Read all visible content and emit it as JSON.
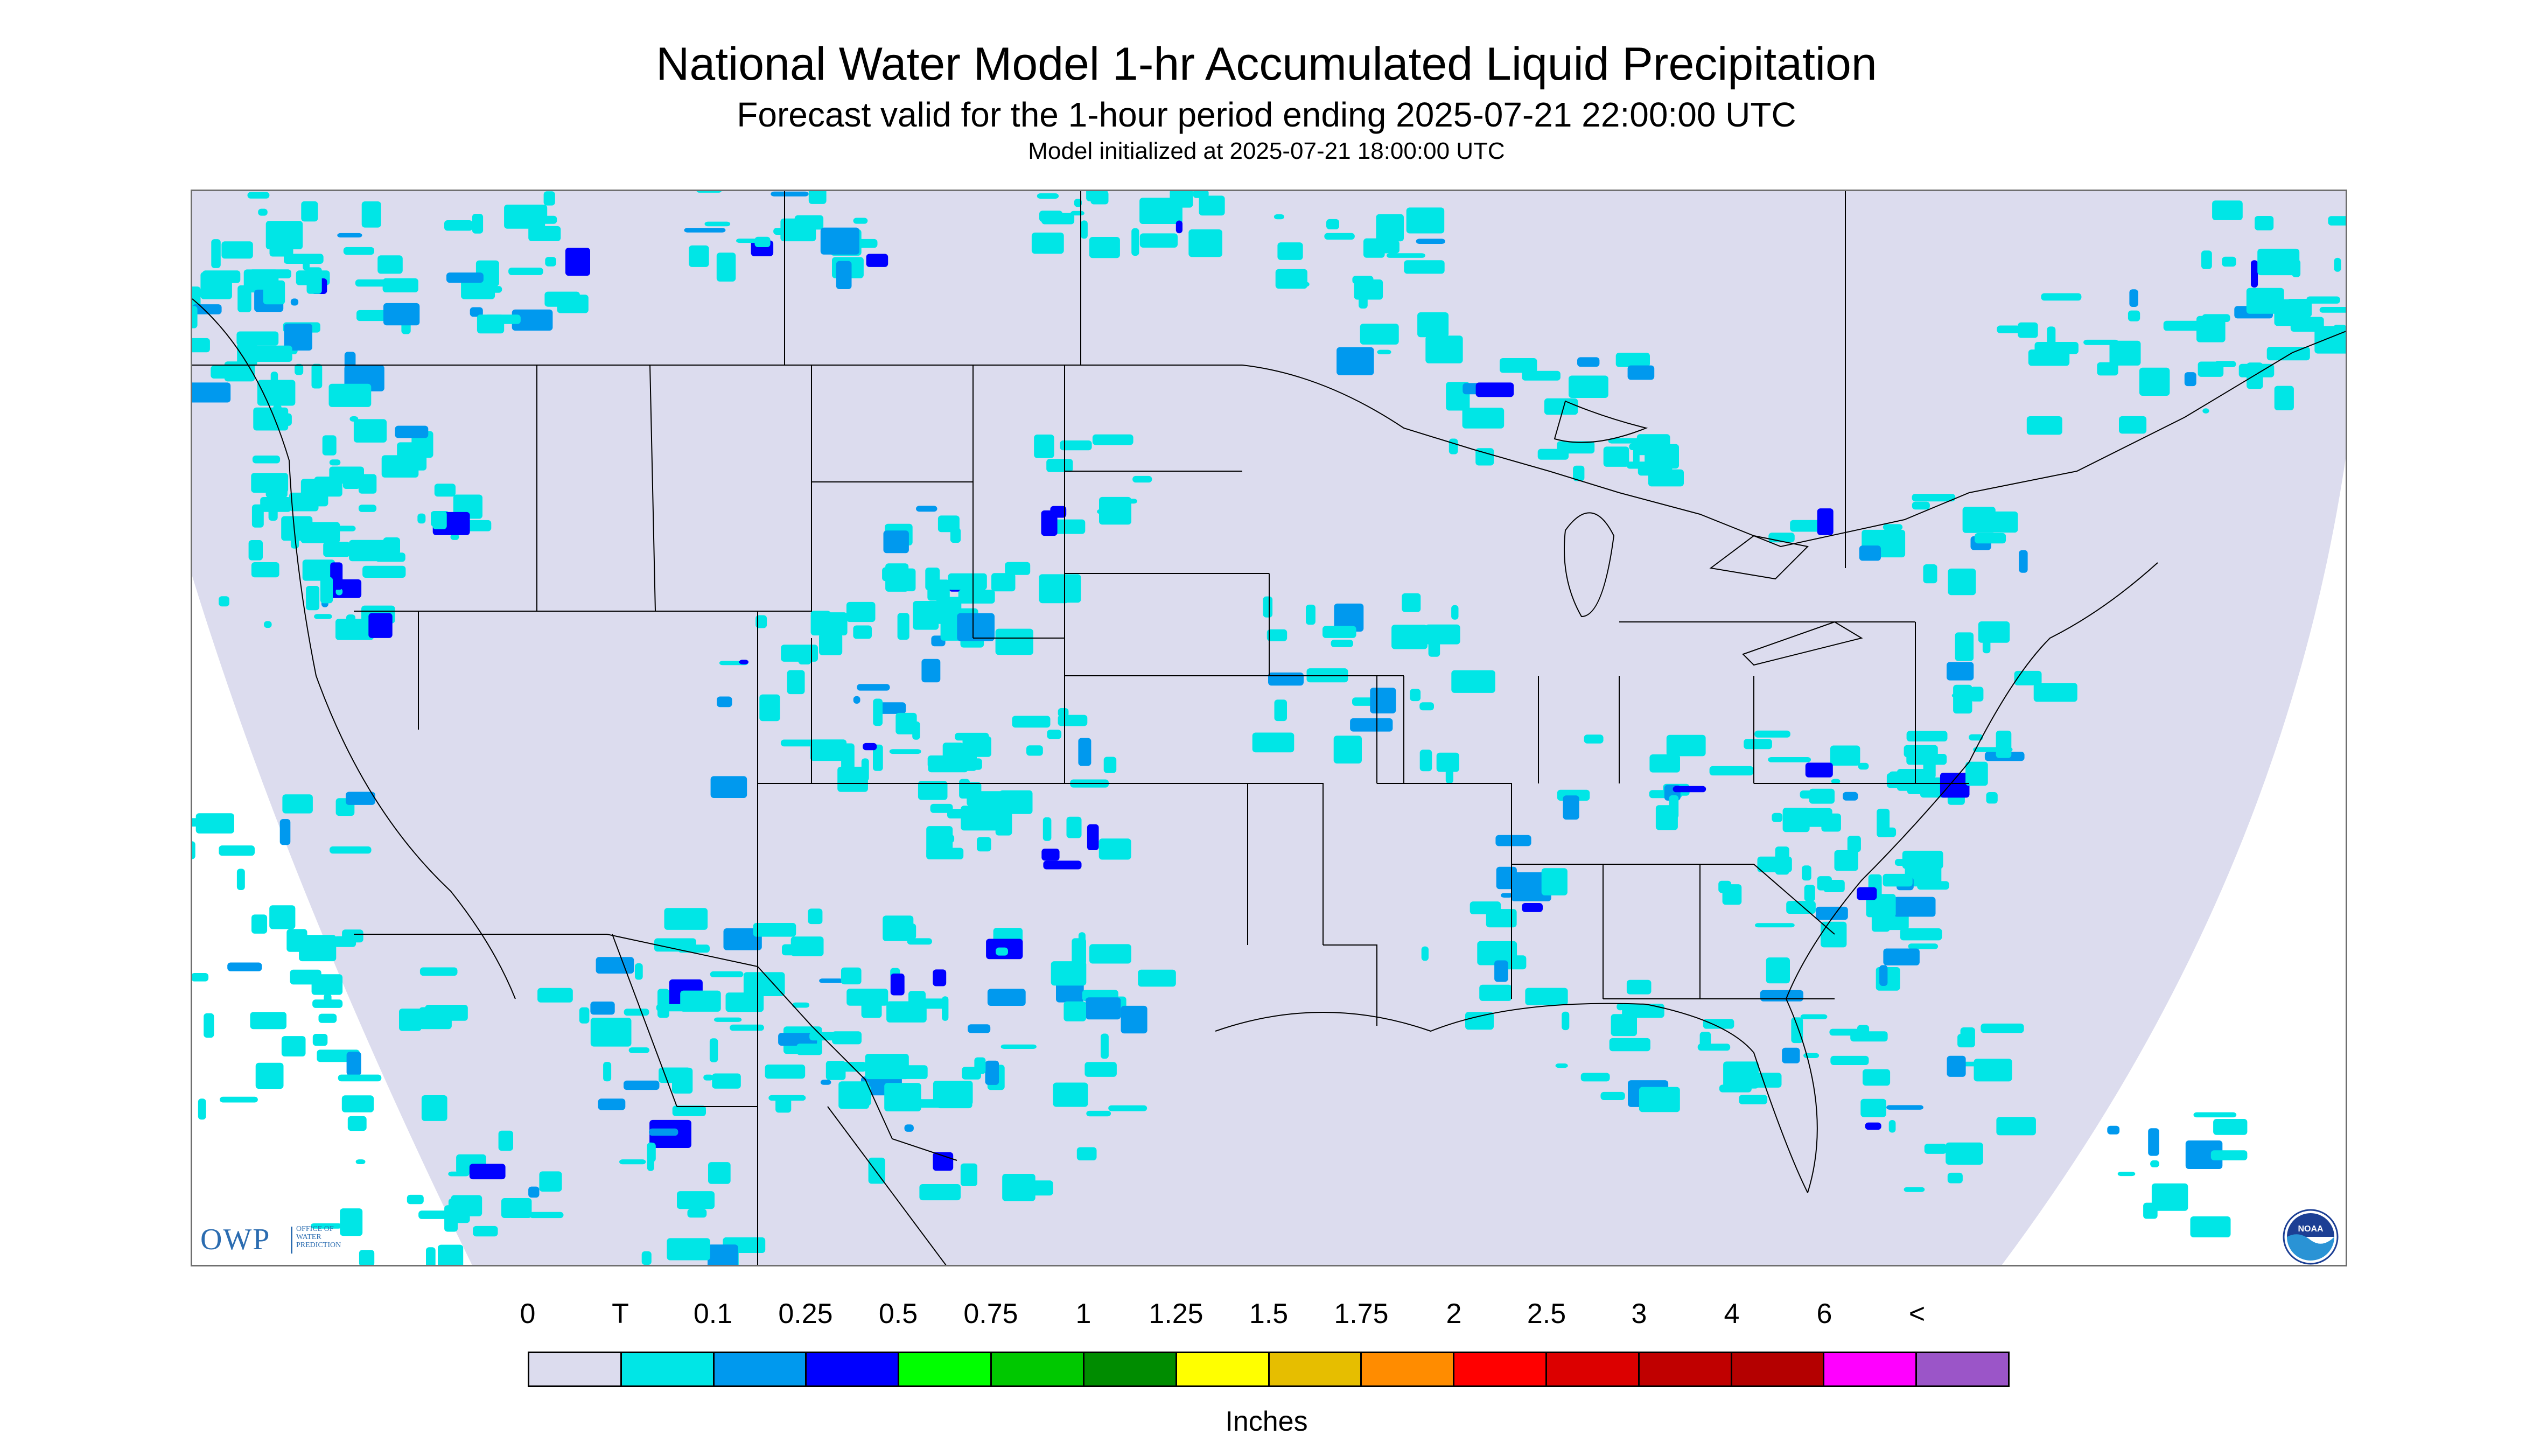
{
  "title": "National Water Model 1-hr Accumulated Liquid Precipitation",
  "subtitle": "Forecast valid for the 1-hour period ending 2025-07-21 22:00:00 UTC",
  "init_line": "Model initialized at 2025-07-21 18:00:00 UTC",
  "map": {
    "background_color": "#ffffff",
    "domain_color": "#dcdcee",
    "boundary_color": "#000000",
    "region": "Continental United States with parts of Canada and Mexico"
  },
  "logos": {
    "owp": {
      "letters": "OWP",
      "subtitle_lines": [
        "OFFICE OF",
        "WATER",
        "PREDICTION"
      ],
      "icon": "owp-logo"
    },
    "noaa": {
      "text": "NOAA",
      "icon": "noaa-logo"
    }
  },
  "legend": {
    "labels": [
      "0",
      "T",
      "0.1",
      "0.25",
      "0.5",
      "0.75",
      "1",
      "1.25",
      "1.5",
      "1.75",
      "2",
      "2.5",
      "3",
      "4",
      "6",
      "<"
    ],
    "colors": [
      "#dcdcee",
      "#00e6e6",
      "#0099ee",
      "#0000ff",
      "#00ff00",
      "#00c800",
      "#008c00",
      "#ffff00",
      "#e6be00",
      "#ff8c00",
      "#ff0000",
      "#dc0000",
      "#c00000",
      "#b40000",
      "#ff00ff",
      "#9b55c8"
    ],
    "units": "Inches"
  }
}
